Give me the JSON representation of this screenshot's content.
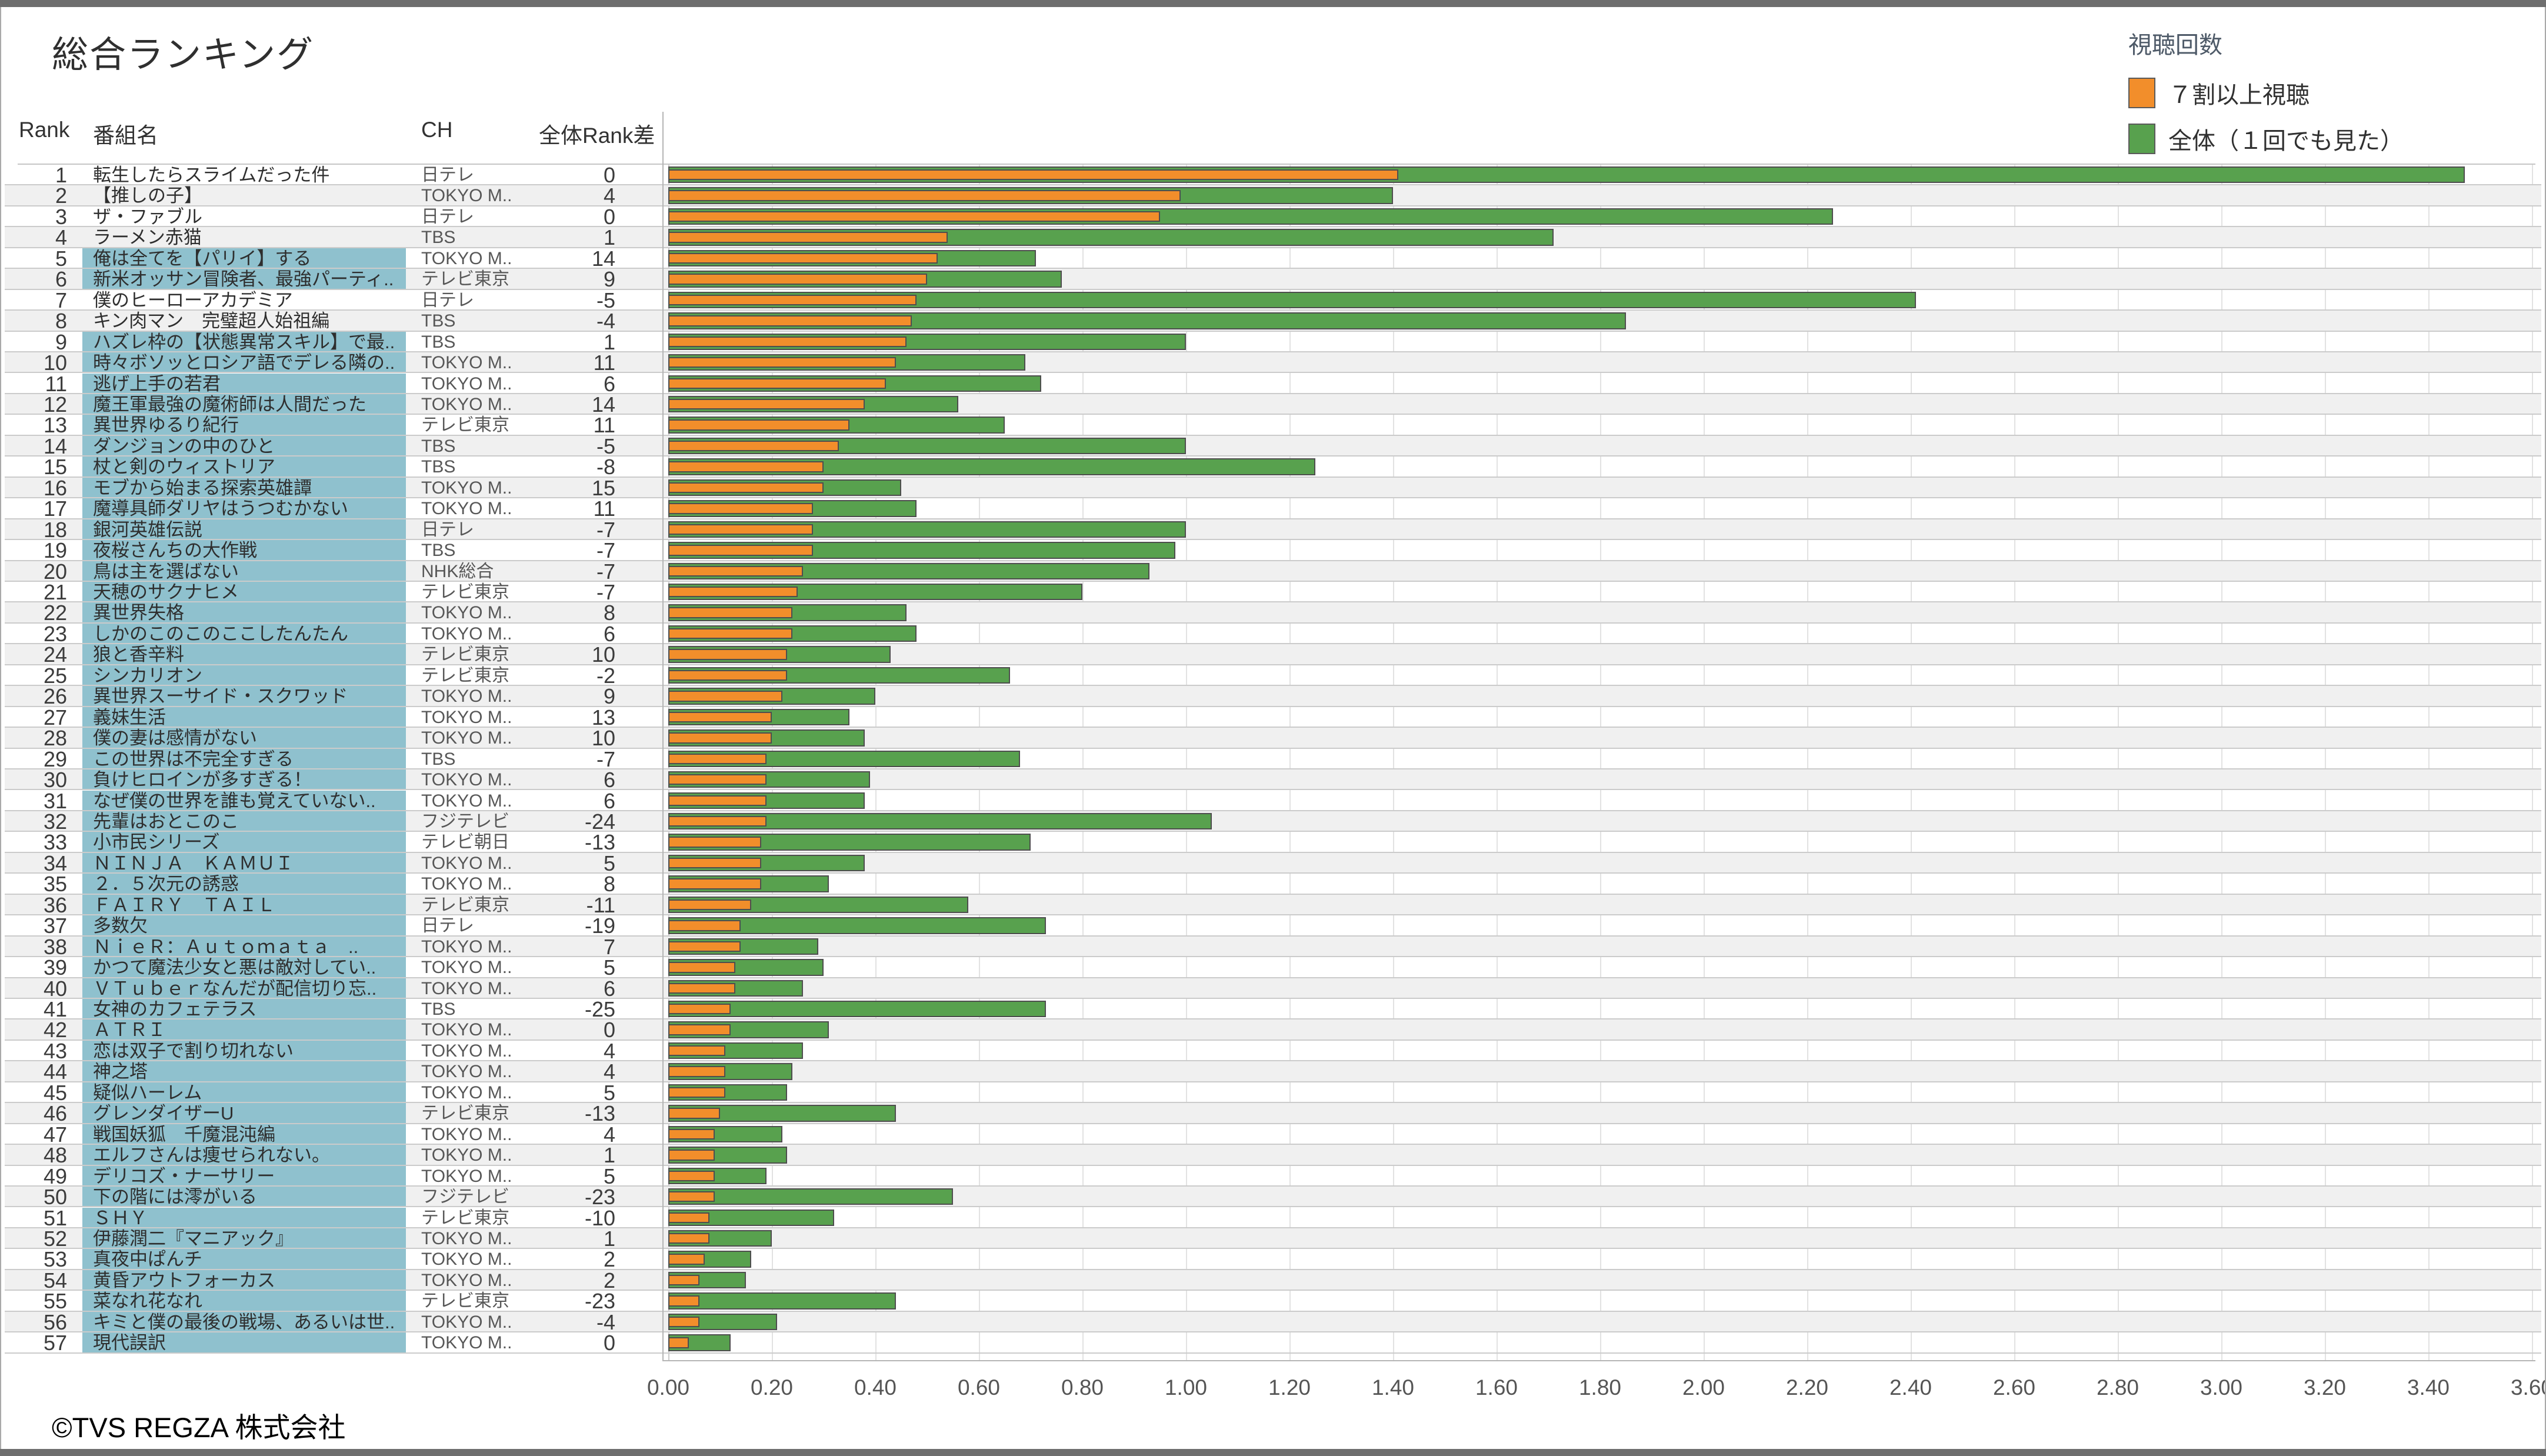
{
  "header": {
    "title": "総合ランキング"
  },
  "legend": {
    "title": "視聴回数",
    "items": [
      {
        "label": "７割以上視聴",
        "color": "#f28e2b"
      },
      {
        "label": "全体（１回でも見た）",
        "color": "#58a14e"
      }
    ]
  },
  "table": {
    "columns": {
      "rank": "Rank",
      "name": "番組名",
      "ch": "CH",
      "diff": "全体Rank差"
    }
  },
  "footer": {
    "copyright": "©TVS REGZA 株式会社"
  },
  "chart_data": {
    "type": "bar",
    "orientation": "horizontal",
    "title": "総合ランキング",
    "xlim": [
      0,
      3.6
    ],
    "tick_step": 0.2,
    "ticks": [
      "0.00",
      "0.20",
      "0.40",
      "0.60",
      "0.80",
      "1.00",
      "1.20",
      "1.40",
      "1.60",
      "1.80",
      "2.00",
      "2.20",
      "2.40",
      "2.60",
      "2.80",
      "3.00",
      "3.20",
      "3.40",
      "3.60"
    ],
    "grid": true,
    "legend_position": "top-right",
    "series_meta": [
      {
        "name": "７割以上視聴",
        "key": "w70",
        "color": "#f28e2b"
      },
      {
        "name": "全体（１回でも見た）",
        "key": "all",
        "color": "#58a14e"
      }
    ],
    "rows": [
      {
        "rank": 1,
        "name": "転生したらスライムだった件",
        "ch": "日テレ",
        "diff": "0",
        "all": 3.47,
        "w70": 1.41,
        "hl": false
      },
      {
        "rank": 2,
        "name": "【推しの子】",
        "ch": "TOKYO M..",
        "diff": "4",
        "all": 1.4,
        "w70": 0.99,
        "hl": false
      },
      {
        "rank": 3,
        "name": "ザ・ファブル",
        "ch": "日テレ",
        "diff": "0",
        "all": 2.25,
        "w70": 0.95,
        "hl": false
      },
      {
        "rank": 4,
        "name": "ラーメン赤猫",
        "ch": "TBS",
        "diff": "1",
        "all": 1.71,
        "w70": 0.54,
        "hl": false
      },
      {
        "rank": 5,
        "name": "俺は全てを【パリイ】する",
        "ch": "TOKYO M..",
        "diff": "14",
        "all": 0.71,
        "w70": 0.52,
        "hl": true
      },
      {
        "rank": 6,
        "name": "新米オッサン冒険者、最強パーティ..",
        "ch": "テレビ東京",
        "diff": "9",
        "all": 0.76,
        "w70": 0.5,
        "hl": true
      },
      {
        "rank": 7,
        "name": "僕のヒーローアカデミア",
        "ch": "日テレ",
        "diff": "-5",
        "all": 2.41,
        "w70": 0.48,
        "hl": false
      },
      {
        "rank": 8,
        "name": "キン肉マン　完璧超人始祖編",
        "ch": "TBS",
        "diff": "-4",
        "all": 1.85,
        "w70": 0.47,
        "hl": false
      },
      {
        "rank": 9,
        "name": "ハズレ枠の【状態異常スキル】で最..",
        "ch": "TBS",
        "diff": "1",
        "all": 1.0,
        "w70": 0.46,
        "hl": true
      },
      {
        "rank": 10,
        "name": "時々ボソッとロシア語でデレる隣の..",
        "ch": "TOKYO M..",
        "diff": "11",
        "all": 0.69,
        "w70": 0.44,
        "hl": true
      },
      {
        "rank": 11,
        "name": "逃げ上手の若君",
        "ch": "TOKYO M..",
        "diff": "6",
        "all": 0.72,
        "w70": 0.42,
        "hl": true
      },
      {
        "rank": 12,
        "name": "魔王軍最強の魔術師は人間だった",
        "ch": "TOKYO M..",
        "diff": "14",
        "all": 0.56,
        "w70": 0.38,
        "hl": true
      },
      {
        "rank": 13,
        "name": "異世界ゆるり紀行",
        "ch": "テレビ東京",
        "diff": "11",
        "all": 0.65,
        "w70": 0.35,
        "hl": true
      },
      {
        "rank": 14,
        "name": "ダンジョンの中のひと",
        "ch": "TBS",
        "diff": "-5",
        "all": 1.0,
        "w70": 0.33,
        "hl": true
      },
      {
        "rank": 15,
        "name": "杖と剣のウィストリア",
        "ch": "TBS",
        "diff": "-8",
        "all": 1.25,
        "w70": 0.3,
        "hl": true
      },
      {
        "rank": 16,
        "name": "モブから始まる探索英雄譚",
        "ch": "TOKYO M..",
        "diff": "15",
        "all": 0.45,
        "w70": 0.3,
        "hl": true
      },
      {
        "rank": 17,
        "name": "魔導具師ダリヤはうつむかない",
        "ch": "TOKYO M..",
        "diff": "11",
        "all": 0.48,
        "w70": 0.28,
        "hl": true
      },
      {
        "rank": 18,
        "name": "銀河英雄伝説",
        "ch": "日テレ",
        "diff": "-7",
        "all": 1.0,
        "w70": 0.28,
        "hl": true
      },
      {
        "rank": 19,
        "name": "夜桜さんちの大作戦",
        "ch": "TBS",
        "diff": "-7",
        "all": 0.98,
        "w70": 0.28,
        "hl": true
      },
      {
        "rank": 20,
        "name": "鳥は主を選ばない",
        "ch": "NHK総合",
        "diff": "-7",
        "all": 0.93,
        "w70": 0.26,
        "hl": true
      },
      {
        "rank": 21,
        "name": "天穂のサクナヒメ",
        "ch": "テレビ東京",
        "diff": "-7",
        "all": 0.8,
        "w70": 0.25,
        "hl": true
      },
      {
        "rank": 22,
        "name": "異世界失格",
        "ch": "TOKYO M..",
        "diff": "8",
        "all": 0.46,
        "w70": 0.24,
        "hl": true
      },
      {
        "rank": 23,
        "name": "しかのこのこのここしたんたん",
        "ch": "TOKYO M..",
        "diff": "6",
        "all": 0.48,
        "w70": 0.24,
        "hl": true
      },
      {
        "rank": 24,
        "name": "狼と香辛料",
        "ch": "テレビ東京",
        "diff": "10",
        "all": 0.43,
        "w70": 0.23,
        "hl": true
      },
      {
        "rank": 25,
        "name": "シンカリオン",
        "ch": "テレビ東京",
        "diff": "-2",
        "all": 0.66,
        "w70": 0.23,
        "hl": true
      },
      {
        "rank": 26,
        "name": "異世界スーサイド・スクワッド",
        "ch": "TOKYO M..",
        "diff": "9",
        "all": 0.4,
        "w70": 0.22,
        "hl": true
      },
      {
        "rank": 27,
        "name": "義妹生活",
        "ch": "TOKYO M..",
        "diff": "13",
        "all": 0.35,
        "w70": 0.2,
        "hl": true
      },
      {
        "rank": 28,
        "name": "僕の妻は感情がない",
        "ch": "TOKYO M..",
        "diff": "10",
        "all": 0.38,
        "w70": 0.2,
        "hl": true
      },
      {
        "rank": 29,
        "name": "この世界は不完全すぎる",
        "ch": "TBS",
        "diff": "-7",
        "all": 0.68,
        "w70": 0.19,
        "hl": true
      },
      {
        "rank": 30,
        "name": "負けヒロインが多すぎる！",
        "ch": "TOKYO M..",
        "diff": "6",
        "all": 0.39,
        "w70": 0.19,
        "hl": true
      },
      {
        "rank": 31,
        "name": "なぜ僕の世界を誰も覚えていない..",
        "ch": "TOKYO M..",
        "diff": "6",
        "all": 0.38,
        "w70": 0.19,
        "hl": true
      },
      {
        "rank": 32,
        "name": "先輩はおとこのこ",
        "ch": "フジテレビ",
        "diff": "-24",
        "all": 1.05,
        "w70": 0.19,
        "hl": true
      },
      {
        "rank": 33,
        "name": "小市民シリーズ",
        "ch": "テレビ朝日",
        "diff": "-13",
        "all": 0.7,
        "w70": 0.18,
        "hl": true
      },
      {
        "rank": 34,
        "name": "ＮＩＮＪＡ　ＫＡＭＵＩ",
        "ch": "TOKYO M..",
        "diff": "5",
        "all": 0.38,
        "w70": 0.18,
        "hl": true
      },
      {
        "rank": 35,
        "name": "２．５次元の誘惑",
        "ch": "TOKYO M..",
        "diff": "8",
        "all": 0.31,
        "w70": 0.18,
        "hl": true
      },
      {
        "rank": 36,
        "name": "ＦＡＩＲＹ　ＴＡＩＬ",
        "ch": "テレビ東京",
        "diff": "-11",
        "all": 0.58,
        "w70": 0.16,
        "hl": true
      },
      {
        "rank": 37,
        "name": "多数欠",
        "ch": "日テレ",
        "diff": "-19",
        "all": 0.73,
        "w70": 0.14,
        "hl": true
      },
      {
        "rank": 38,
        "name": "ＮｉｅＲ：Ａｕｔｏｍａｔａ　..",
        "ch": "TOKYO M..",
        "diff": "7",
        "all": 0.29,
        "w70": 0.14,
        "hl": true
      },
      {
        "rank": 39,
        "name": "かつて魔法少女と悪は敵対してい..",
        "ch": "TOKYO M..",
        "diff": "5",
        "all": 0.3,
        "w70": 0.13,
        "hl": true
      },
      {
        "rank": 40,
        "name": "ＶＴｕｂｅｒなんだが配信切り忘..",
        "ch": "TOKYO M..",
        "diff": "6",
        "all": 0.26,
        "w70": 0.13,
        "hl": true
      },
      {
        "rank": 41,
        "name": "女神のカフェテラス",
        "ch": "TBS",
        "diff": "-25",
        "all": 0.73,
        "w70": 0.12,
        "hl": true
      },
      {
        "rank": 42,
        "name": "ＡＴＲＩ",
        "ch": "TOKYO M..",
        "diff": "0",
        "all": 0.31,
        "w70": 0.12,
        "hl": true
      },
      {
        "rank": 43,
        "name": "恋は双子で割り切れない",
        "ch": "TOKYO M..",
        "diff": "4",
        "all": 0.26,
        "w70": 0.11,
        "hl": true
      },
      {
        "rank": 44,
        "name": "神之塔",
        "ch": "TOKYO M..",
        "diff": "4",
        "all": 0.24,
        "w70": 0.11,
        "hl": true
      },
      {
        "rank": 45,
        "name": "疑似ハーレム",
        "ch": "TOKYO M..",
        "diff": "5",
        "all": 0.23,
        "w70": 0.11,
        "hl": true
      },
      {
        "rank": 46,
        "name": "グレンダイザーU",
        "ch": "テレビ東京",
        "diff": "-13",
        "all": 0.44,
        "w70": 0.1,
        "hl": true
      },
      {
        "rank": 47,
        "name": "戦国妖狐　千魔混沌編",
        "ch": "TOKYO M..",
        "diff": "4",
        "all": 0.22,
        "w70": 0.09,
        "hl": true
      },
      {
        "rank": 48,
        "name": "エルフさんは痩せられない。",
        "ch": "TOKYO M..",
        "diff": "1",
        "all": 0.23,
        "w70": 0.09,
        "hl": true
      },
      {
        "rank": 49,
        "name": "デリコズ・ナーサリー",
        "ch": "TOKYO M..",
        "diff": "5",
        "all": 0.19,
        "w70": 0.09,
        "hl": true
      },
      {
        "rank": 50,
        "name": "下の階には澪がいる",
        "ch": "フジテレビ",
        "diff": "-23",
        "all": 0.55,
        "w70": 0.09,
        "hl": true
      },
      {
        "rank": 51,
        "name": "ＳＨＹ",
        "ch": "テレビ東京",
        "diff": "-10",
        "all": 0.32,
        "w70": 0.08,
        "hl": true
      },
      {
        "rank": 52,
        "name": "伊藤潤二『マニアック』",
        "ch": "TOKYO M..",
        "diff": "1",
        "all": 0.2,
        "w70": 0.08,
        "hl": true
      },
      {
        "rank": 53,
        "name": "真夜中ぱんチ",
        "ch": "TOKYO M..",
        "diff": "2",
        "all": 0.16,
        "w70": 0.07,
        "hl": true
      },
      {
        "rank": 54,
        "name": "黄昏アウトフォーカス",
        "ch": "TOKYO M..",
        "diff": "2",
        "all": 0.15,
        "w70": 0.06,
        "hl": true
      },
      {
        "rank": 55,
        "name": "菜なれ花なれ",
        "ch": "テレビ東京",
        "diff": "-23",
        "all": 0.44,
        "w70": 0.06,
        "hl": true
      },
      {
        "rank": 56,
        "name": "キミと僕の最後の戦場、あるいは世..",
        "ch": "TOKYO M..",
        "diff": "-4",
        "all": 0.21,
        "w70": 0.06,
        "hl": true
      },
      {
        "rank": 57,
        "name": "現代誤訳",
        "ch": "TOKYO M..",
        "diff": "0",
        "all": 0.12,
        "w70": 0.04,
        "hl": true
      }
    ]
  }
}
